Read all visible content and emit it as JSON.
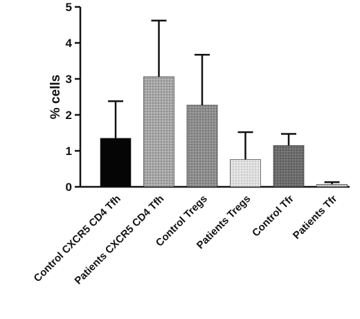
{
  "chart_data": {
    "type": "bar",
    "ylabel": "% cells",
    "xlabel": "",
    "ylim": [
      0,
      5
    ],
    "yticks": [
      0,
      1,
      2,
      3,
      4,
      5
    ],
    "categories": [
      "Control CXCR5 CD4 Tfh",
      "Patients CXCR5 CD4 Tfh",
      "Control Tregs",
      "Patients Tregs",
      "Control Tfr",
      "Patients Tfr"
    ],
    "values": [
      1.35,
      3.06,
      2.27,
      0.76,
      1.15,
      0.07
    ],
    "error_upper": [
      1.03,
      1.56,
      1.4,
      0.76,
      0.32,
      0.06
    ],
    "bar_colors": [
      "#0a0a0a",
      "#9e9e9e",
      "#8a8a8a",
      "#d9d9d9",
      "#6a6a6a",
      "#bdbdbd"
    ],
    "grid": false,
    "legend": "none"
  }
}
